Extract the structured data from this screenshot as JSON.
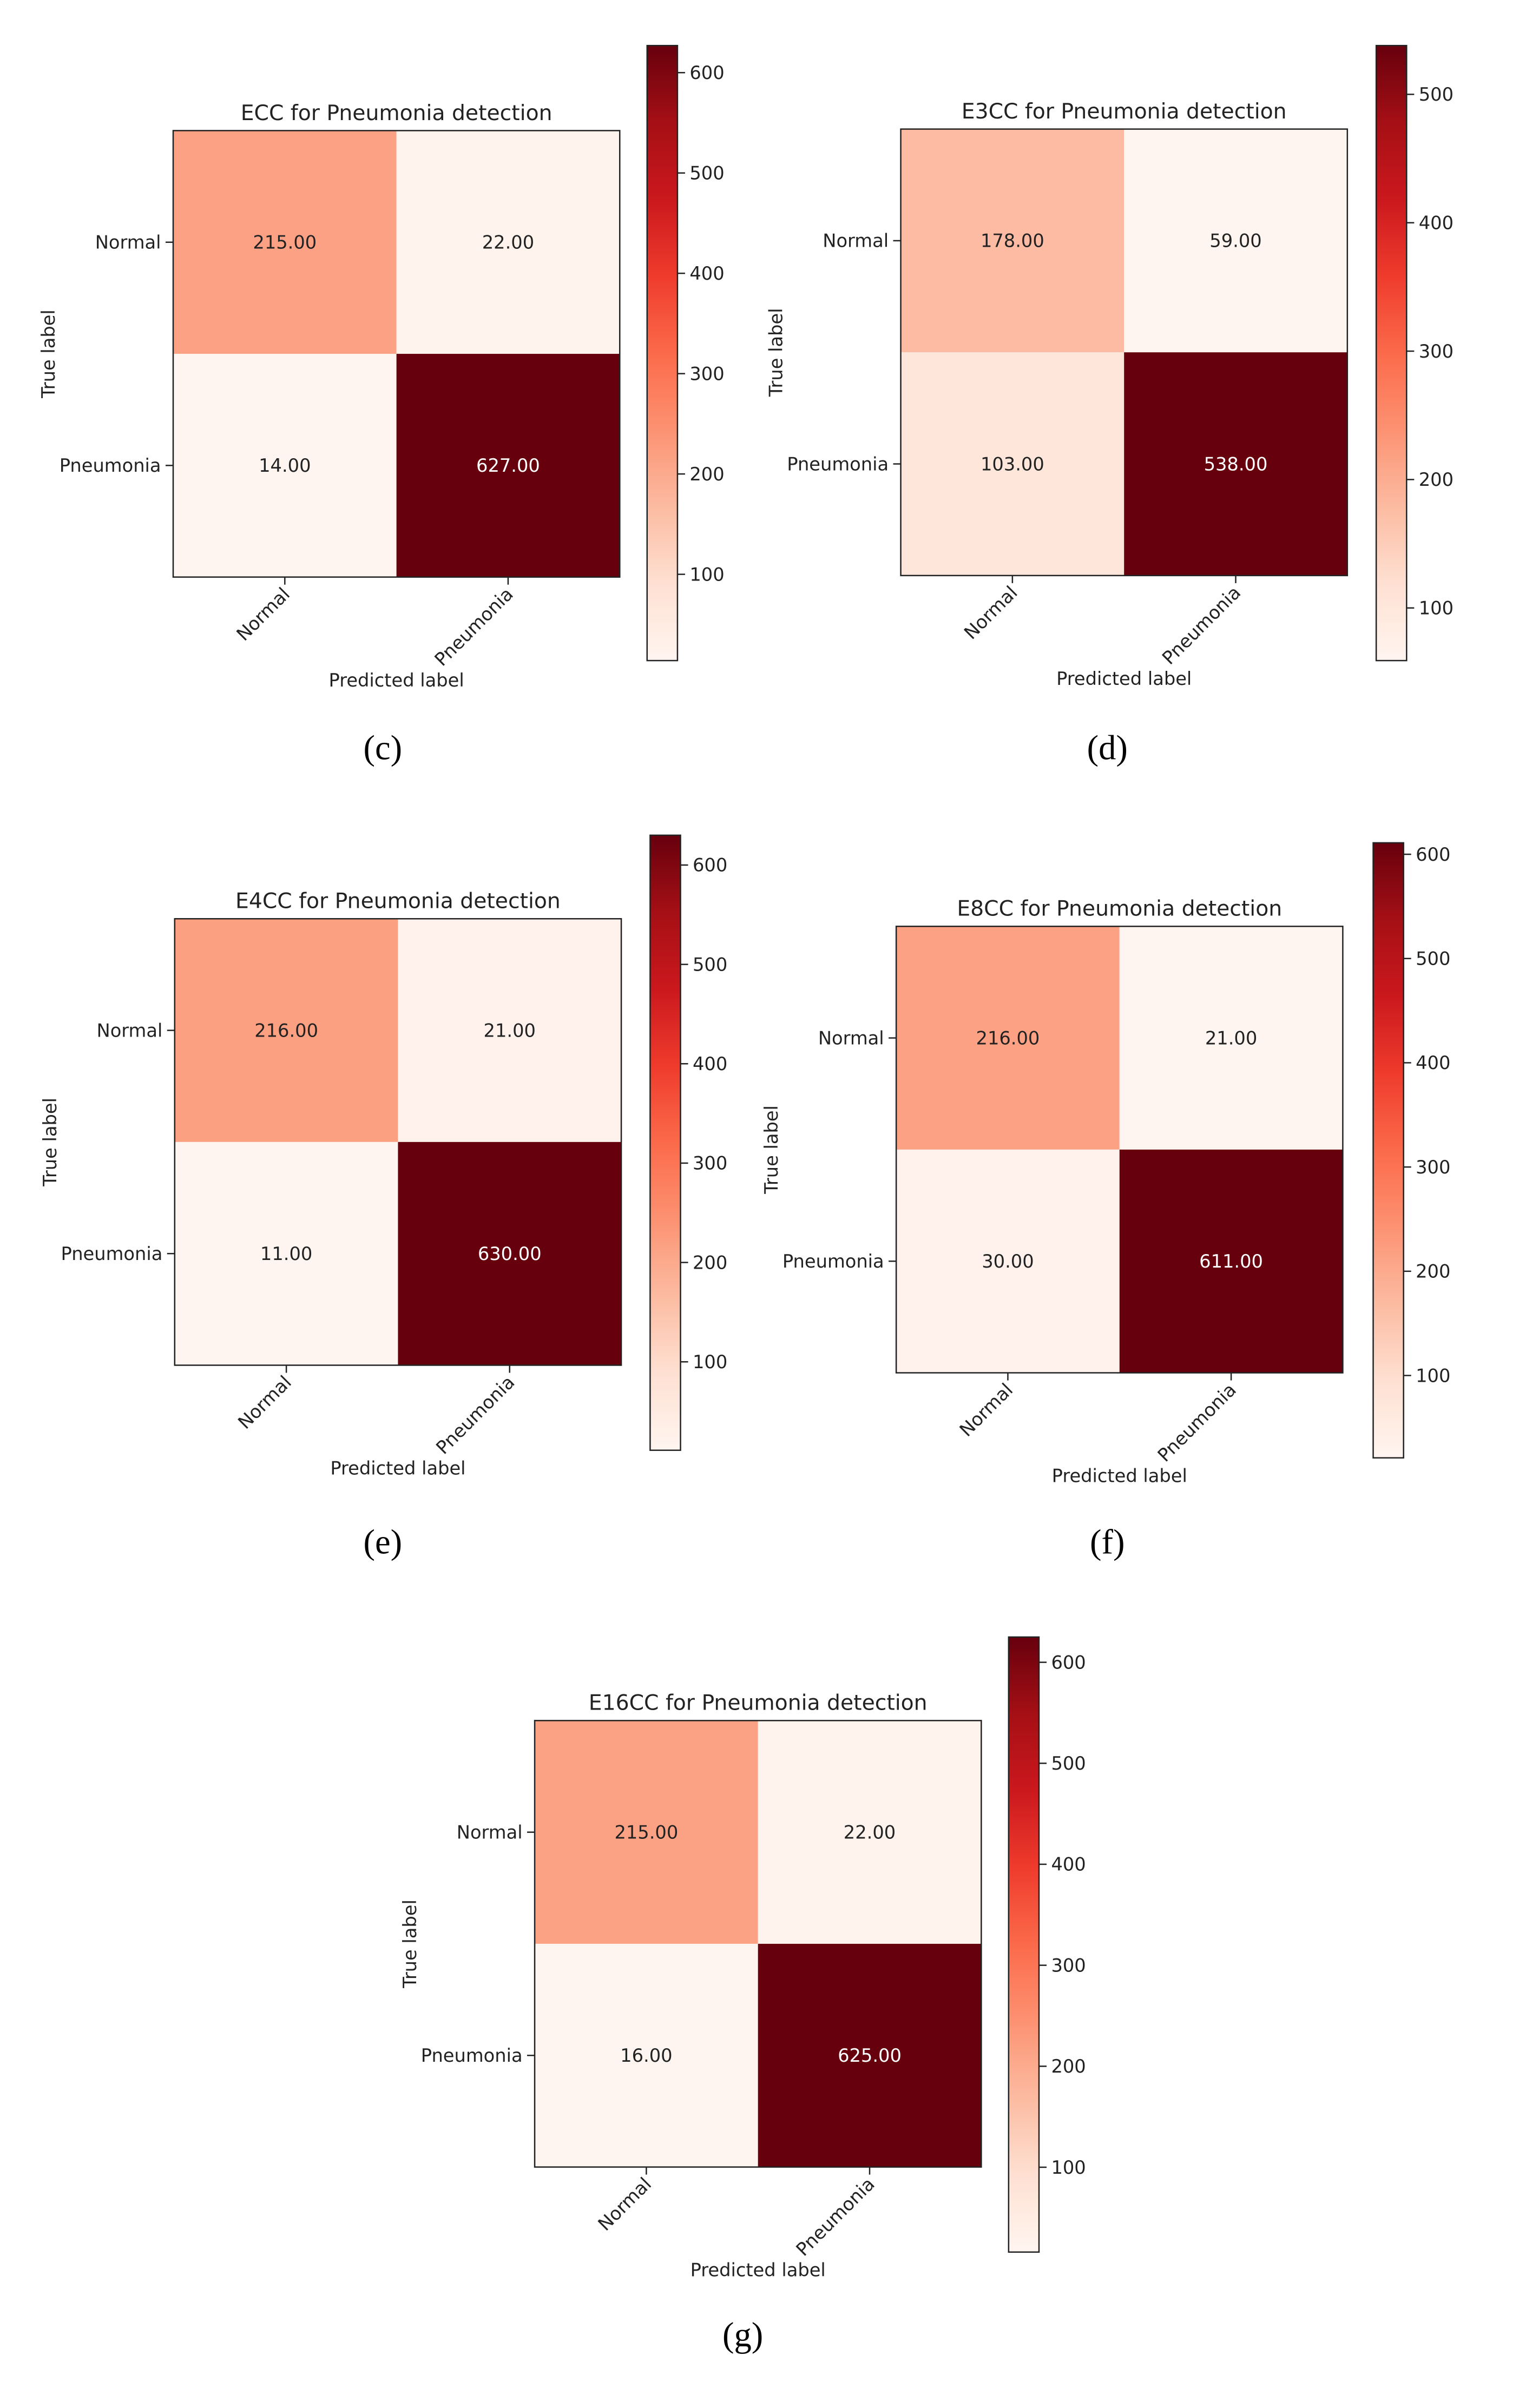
{
  "chart_data": [
    {
      "type": "heatmap",
      "panel_label": "(c)",
      "title": "ECC for Pneumonia detection",
      "xlabel": "Predicted label",
      "ylabel": "True label",
      "x_categories": [
        "Normal",
        "Pneumonia"
      ],
      "y_categories": [
        "Normal",
        "Pneumonia"
      ],
      "values": [
        [
          215,
          22
        ],
        [
          14,
          627
        ]
      ],
      "cell_labels": [
        [
          "215.00",
          "22.00"
        ],
        [
          "14.00",
          "627.00"
        ]
      ],
      "colorbar": {
        "min": 14,
        "max": 627,
        "ticks": [
          100,
          200,
          300,
          400,
          500,
          600
        ]
      },
      "colormap": "Reds"
    },
    {
      "type": "heatmap",
      "panel_label": "(d)",
      "title": "E3CC for Pneumonia detection",
      "xlabel": "Predicted label",
      "ylabel": "True label",
      "x_categories": [
        "Normal",
        "Pneumonia"
      ],
      "y_categories": [
        "Normal",
        "Pneumonia"
      ],
      "values": [
        [
          178,
          59
        ],
        [
          103,
          538
        ]
      ],
      "cell_labels": [
        [
          "178.00",
          "59.00"
        ],
        [
          "103.00",
          "538.00"
        ]
      ],
      "colorbar": {
        "min": 59,
        "max": 538,
        "ticks": [
          100,
          200,
          300,
          400,
          500
        ]
      },
      "colormap": "Reds"
    },
    {
      "type": "heatmap",
      "panel_label": "(e)",
      "title": "E4CC for Pneumonia detection",
      "xlabel": "Predicted label",
      "ylabel": "True label",
      "x_categories": [
        "Normal",
        "Pneumonia"
      ],
      "y_categories": [
        "Normal",
        "Pneumonia"
      ],
      "values": [
        [
          216,
          21
        ],
        [
          11,
          630
        ]
      ],
      "cell_labels": [
        [
          "216.00",
          "21.00"
        ],
        [
          "11.00",
          "630.00"
        ]
      ],
      "colorbar": {
        "min": 11,
        "max": 630,
        "ticks": [
          100,
          200,
          300,
          400,
          500,
          600
        ]
      },
      "colormap": "Reds"
    },
    {
      "type": "heatmap",
      "panel_label": "(f)",
      "title": "E8CC for Pneumonia detection",
      "xlabel": "Predicted label",
      "ylabel": "True label",
      "x_categories": [
        "Normal",
        "Pneumonia"
      ],
      "y_categories": [
        "Normal",
        "Pneumonia"
      ],
      "values": [
        [
          216,
          21
        ],
        [
          30,
          611
        ]
      ],
      "cell_labels": [
        [
          "216.00",
          "21.00"
        ],
        [
          "30.00",
          "611.00"
        ]
      ],
      "colorbar": {
        "min": 21,
        "max": 611,
        "ticks": [
          100,
          200,
          300,
          400,
          500,
          600
        ]
      },
      "colormap": "Reds"
    },
    {
      "type": "heatmap",
      "panel_label": "(g)",
      "title": "E16CC for Pneumonia detection",
      "xlabel": "Predicted label",
      "ylabel": "True label",
      "x_categories": [
        "Normal",
        "Pneumonia"
      ],
      "y_categories": [
        "Normal",
        "Pneumonia"
      ],
      "values": [
        [
          215,
          22
        ],
        [
          16,
          625
        ]
      ],
      "cell_labels": [
        [
          "215.00",
          "22.00"
        ],
        [
          "16.00",
          "625.00"
        ]
      ],
      "colorbar": {
        "min": 16,
        "max": 625,
        "ticks": [
          100,
          200,
          300,
          400,
          500,
          600
        ]
      },
      "colormap": "Reds"
    }
  ]
}
